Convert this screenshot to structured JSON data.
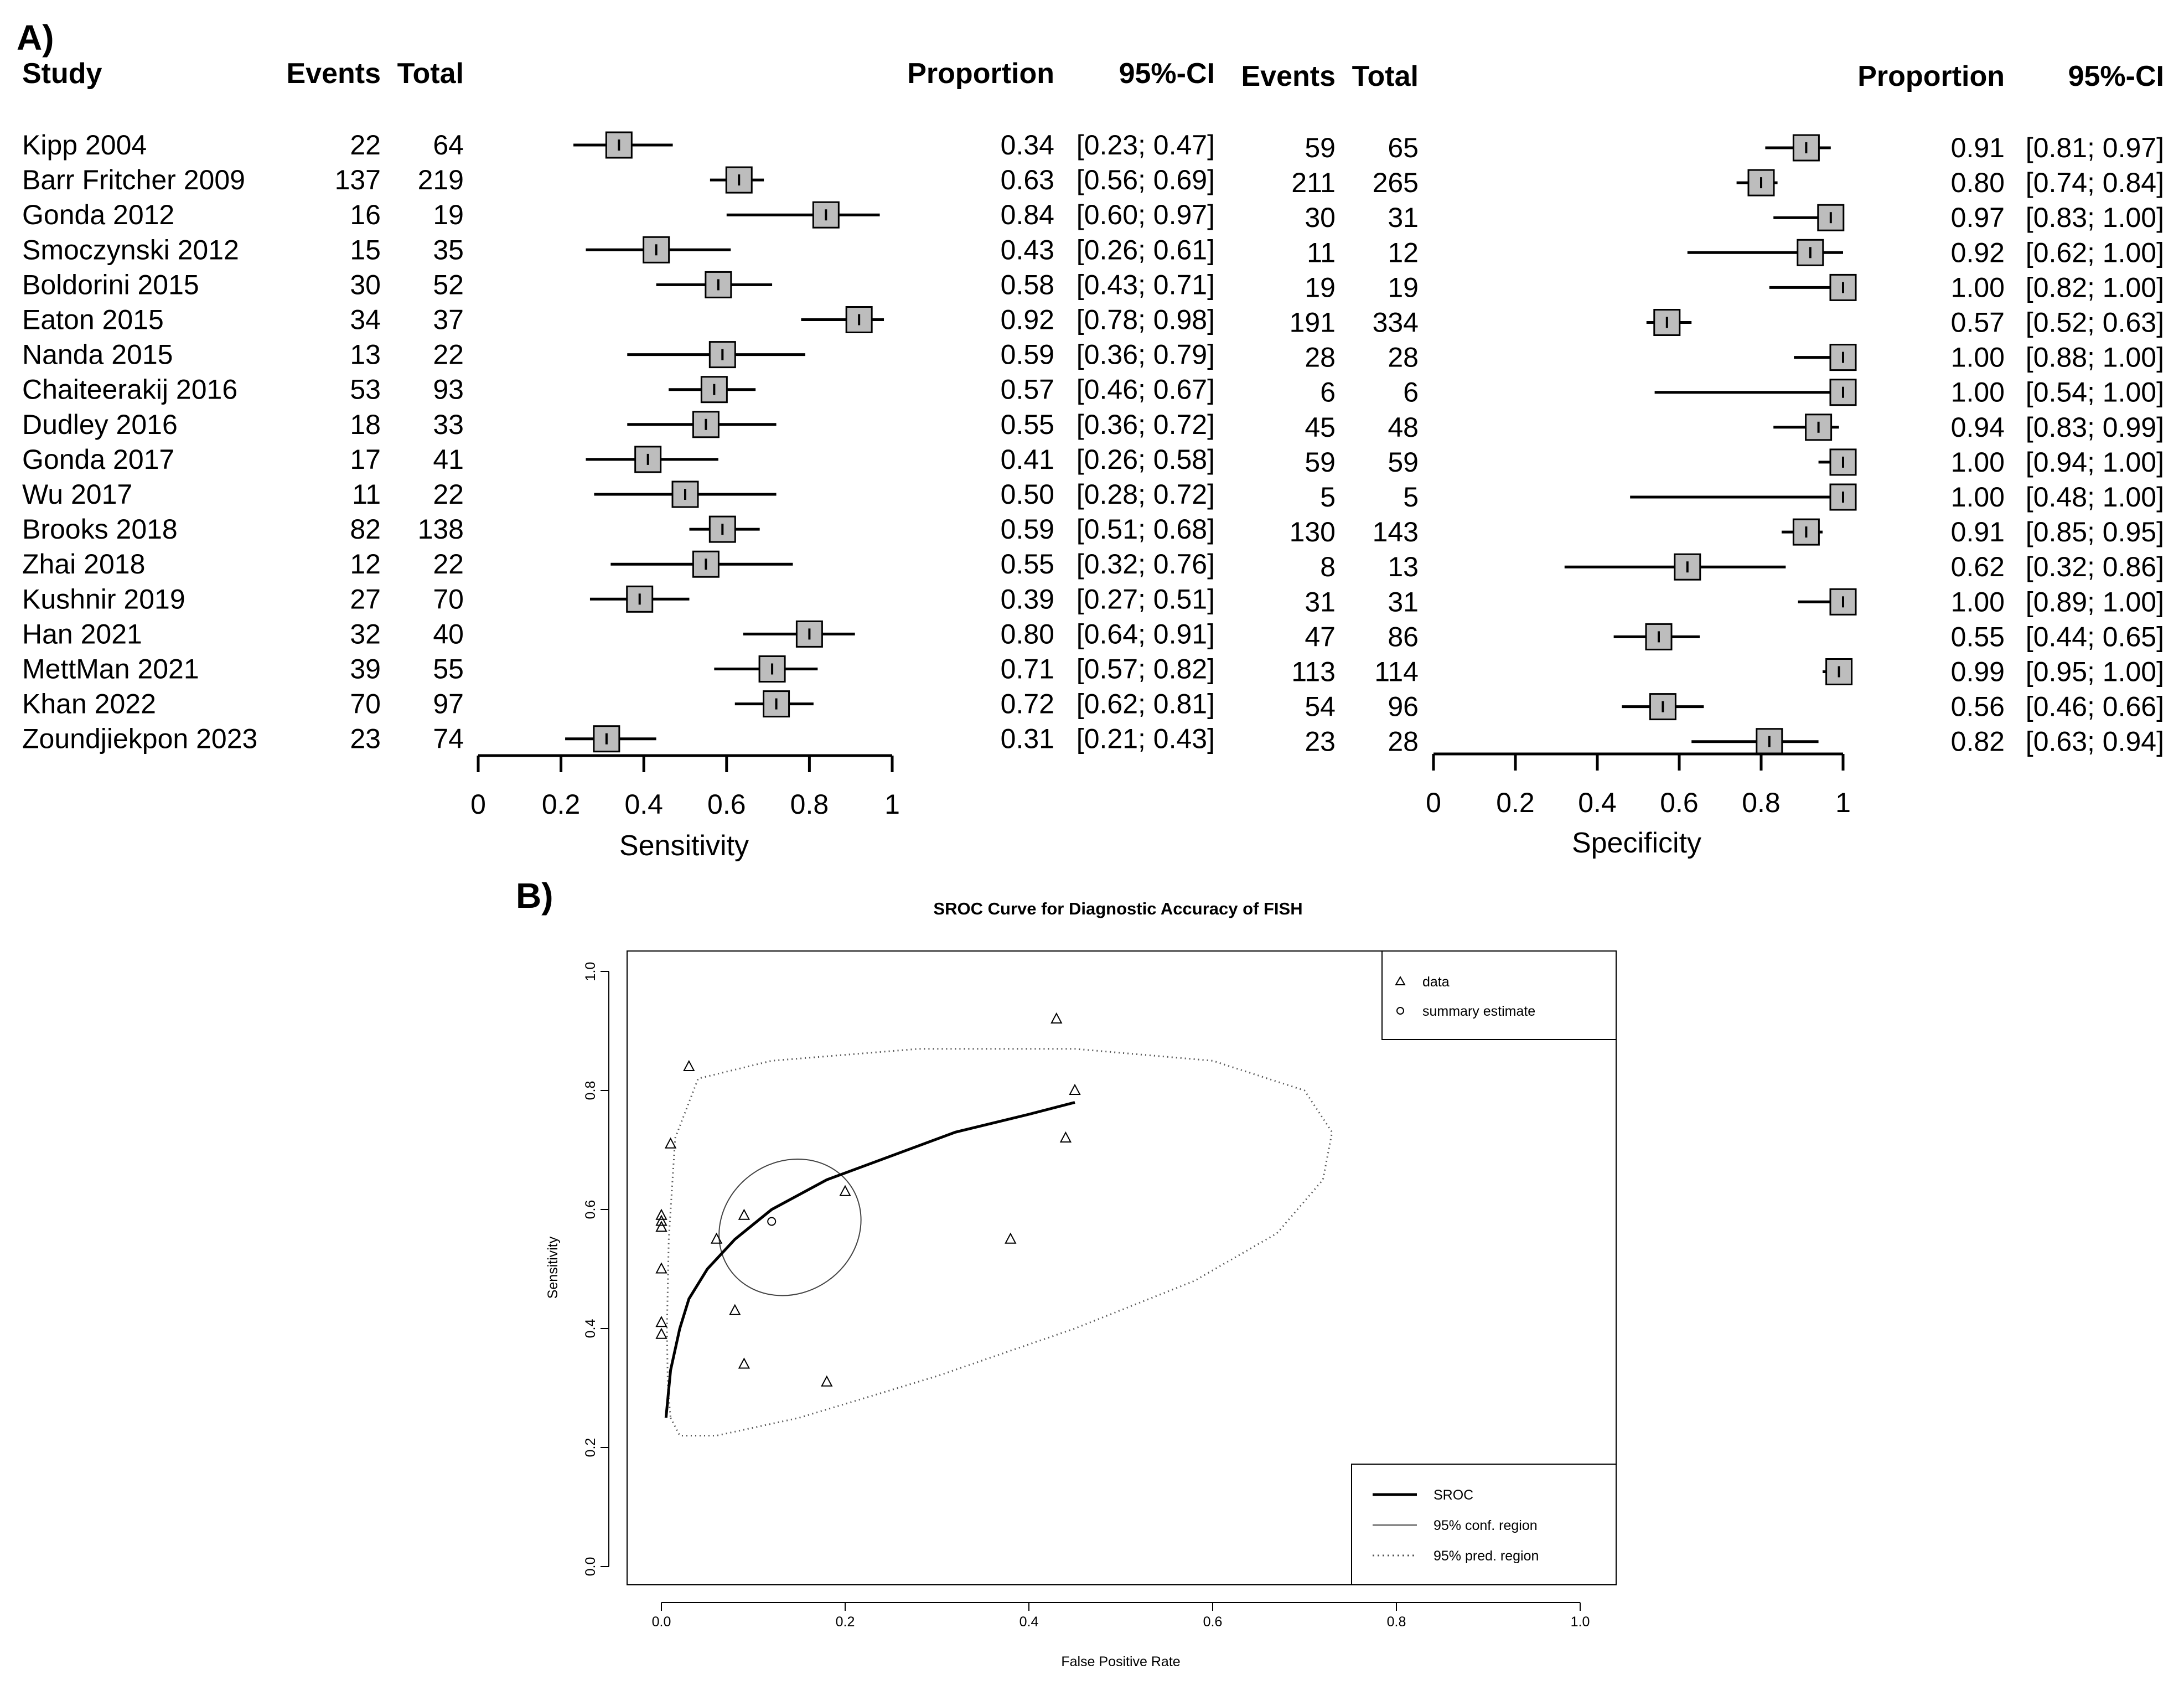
{
  "figure": {
    "panel_a_label": "A)",
    "panel_b_label": "B)"
  },
  "chart_data": [
    {
      "type": "forest",
      "subject": "sensitivity",
      "headers": {
        "study": "Study",
        "events": "Events",
        "total": "Total",
        "proportion": "Proportion",
        "ci": "95%-CI"
      },
      "xlabel": "Sensitivity",
      "xlim": [
        0,
        1
      ],
      "xticks": [
        0,
        0.2,
        0.4,
        0.6,
        0.8,
        1
      ],
      "xtick_labels": [
        "0",
        "0.2",
        "0.4",
        "0.6",
        "0.8",
        "1"
      ],
      "rows": [
        {
          "study": "Kipp 2004",
          "events": "22",
          "total": "64",
          "prop": 0.34,
          "lo": 0.23,
          "hi": 0.47,
          "prop_text": "0.34",
          "ci_text": "[0.23; 0.47]"
        },
        {
          "study": "Barr Fritcher 2009",
          "events": "137",
          "total": "219",
          "prop": 0.63,
          "lo": 0.56,
          "hi": 0.69,
          "prop_text": "0.63",
          "ci_text": "[0.56; 0.69]"
        },
        {
          "study": "Gonda 2012",
          "events": "16",
          "total": "19",
          "prop": 0.84,
          "lo": 0.6,
          "hi": 0.97,
          "prop_text": "0.84",
          "ci_text": "[0.60; 0.97]"
        },
        {
          "study": "Smoczynski 2012",
          "events": "15",
          "total": "35",
          "prop": 0.43,
          "lo": 0.26,
          "hi": 0.61,
          "prop_text": "0.43",
          "ci_text": "[0.26; 0.61]"
        },
        {
          "study": "Boldorini 2015",
          "events": "30",
          "total": "52",
          "prop": 0.58,
          "lo": 0.43,
          "hi": 0.71,
          "prop_text": "0.58",
          "ci_text": "[0.43; 0.71]"
        },
        {
          "study": "Eaton 2015",
          "events": "34",
          "total": "37",
          "prop": 0.92,
          "lo": 0.78,
          "hi": 0.98,
          "prop_text": "0.92",
          "ci_text": "[0.78; 0.98]"
        },
        {
          "study": "Nanda 2015",
          "events": "13",
          "total": "22",
          "prop": 0.59,
          "lo": 0.36,
          "hi": 0.79,
          "prop_text": "0.59",
          "ci_text": "[0.36; 0.79]"
        },
        {
          "study": "Chaiteerakij 2016",
          "events": "53",
          "total": "93",
          "prop": 0.57,
          "lo": 0.46,
          "hi": 0.67,
          "prop_text": "0.57",
          "ci_text": "[0.46; 0.67]"
        },
        {
          "study": "Dudley 2016",
          "events": "18",
          "total": "33",
          "prop": 0.55,
          "lo": 0.36,
          "hi": 0.72,
          "prop_text": "0.55",
          "ci_text": "[0.36; 0.72]"
        },
        {
          "study": "Gonda 2017",
          "events": "17",
          "total": "41",
          "prop": 0.41,
          "lo": 0.26,
          "hi": 0.58,
          "prop_text": "0.41",
          "ci_text": "[0.26; 0.58]"
        },
        {
          "study": "Wu 2017",
          "events": "11",
          "total": "22",
          "prop": 0.5,
          "lo": 0.28,
          "hi": 0.72,
          "prop_text": "0.50",
          "ci_text": "[0.28; 0.72]"
        },
        {
          "study": "Brooks 2018",
          "events": "82",
          "total": "138",
          "prop": 0.59,
          "lo": 0.51,
          "hi": 0.68,
          "prop_text": "0.59",
          "ci_text": "[0.51; 0.68]"
        },
        {
          "study": "Zhai 2018",
          "events": "12",
          "total": "22",
          "prop": 0.55,
          "lo": 0.32,
          "hi": 0.76,
          "prop_text": "0.55",
          "ci_text": "[0.32; 0.76]"
        },
        {
          "study": "Kushnir 2019",
          "events": "27",
          "total": "70",
          "prop": 0.39,
          "lo": 0.27,
          "hi": 0.51,
          "prop_text": "0.39",
          "ci_text": "[0.27; 0.51]"
        },
        {
          "study": "Han 2021",
          "events": "32",
          "total": "40",
          "prop": 0.8,
          "lo": 0.64,
          "hi": 0.91,
          "prop_text": "0.80",
          "ci_text": "[0.64; 0.91]"
        },
        {
          "study": "MettMan 2021",
          "events": "39",
          "total": "55",
          "prop": 0.71,
          "lo": 0.57,
          "hi": 0.82,
          "prop_text": "0.71",
          "ci_text": "[0.57; 0.82]"
        },
        {
          "study": "Khan 2022",
          "events": "70",
          "total": "97",
          "prop": 0.72,
          "lo": 0.62,
          "hi": 0.81,
          "prop_text": "0.72",
          "ci_text": "[0.62; 0.81]"
        },
        {
          "study": "Zoundjiekpon 2023",
          "events": "23",
          "total": "74",
          "prop": 0.31,
          "lo": 0.21,
          "hi": 0.43,
          "prop_text": "0.31",
          "ci_text": "[0.21; 0.43]"
        }
      ]
    },
    {
      "type": "forest",
      "subject": "specificity",
      "headers": {
        "events": "Events",
        "total": "Total",
        "proportion": "Proportion",
        "ci": "95%-CI"
      },
      "xlabel": "Specificity",
      "xlim": [
        0,
        1
      ],
      "xticks": [
        0,
        0.2,
        0.4,
        0.6,
        0.8,
        1
      ],
      "xtick_labels": [
        "0",
        "0.2",
        "0.4",
        "0.6",
        "0.8",
        "1"
      ],
      "rows": [
        {
          "events": "59",
          "total": "65",
          "prop": 0.91,
          "lo": 0.81,
          "hi": 0.97,
          "prop_text": "0.91",
          "ci_text": "[0.81; 0.97]"
        },
        {
          "events": "211",
          "total": "265",
          "prop": 0.8,
          "lo": 0.74,
          "hi": 0.84,
          "prop_text": "0.80",
          "ci_text": "[0.74; 0.84]"
        },
        {
          "events": "30",
          "total": "31",
          "prop": 0.97,
          "lo": 0.83,
          "hi": 1.0,
          "prop_text": "0.97",
          "ci_text": "[0.83; 1.00]"
        },
        {
          "events": "11",
          "total": "12",
          "prop": 0.92,
          "lo": 0.62,
          "hi": 1.0,
          "prop_text": "0.92",
          "ci_text": "[0.62; 1.00]"
        },
        {
          "events": "19",
          "total": "19",
          "prop": 1.0,
          "lo": 0.82,
          "hi": 1.0,
          "prop_text": "1.00",
          "ci_text": "[0.82; 1.00]"
        },
        {
          "events": "191",
          "total": "334",
          "prop": 0.57,
          "lo": 0.52,
          "hi": 0.63,
          "prop_text": "0.57",
          "ci_text": "[0.52; 0.63]"
        },
        {
          "events": "28",
          "total": "28",
          "prop": 1.0,
          "lo": 0.88,
          "hi": 1.0,
          "prop_text": "1.00",
          "ci_text": "[0.88; 1.00]"
        },
        {
          "events": "6",
          "total": "6",
          "prop": 1.0,
          "lo": 0.54,
          "hi": 1.0,
          "prop_text": "1.00",
          "ci_text": "[0.54; 1.00]"
        },
        {
          "events": "45",
          "total": "48",
          "prop": 0.94,
          "lo": 0.83,
          "hi": 0.99,
          "prop_text": "0.94",
          "ci_text": "[0.83; 0.99]"
        },
        {
          "events": "59",
          "total": "59",
          "prop": 1.0,
          "lo": 0.94,
          "hi": 1.0,
          "prop_text": "1.00",
          "ci_text": "[0.94; 1.00]"
        },
        {
          "events": "5",
          "total": "5",
          "prop": 1.0,
          "lo": 0.48,
          "hi": 1.0,
          "prop_text": "1.00",
          "ci_text": "[0.48; 1.00]"
        },
        {
          "events": "130",
          "total": "143",
          "prop": 0.91,
          "lo": 0.85,
          "hi": 0.95,
          "prop_text": "0.91",
          "ci_text": "[0.85; 0.95]"
        },
        {
          "events": "8",
          "total": "13",
          "prop": 0.62,
          "lo": 0.32,
          "hi": 0.86,
          "prop_text": "0.62",
          "ci_text": "[0.32; 0.86]"
        },
        {
          "events": "31",
          "total": "31",
          "prop": 1.0,
          "lo": 0.89,
          "hi": 1.0,
          "prop_text": "1.00",
          "ci_text": "[0.89; 1.00]"
        },
        {
          "events": "47",
          "total": "86",
          "prop": 0.55,
          "lo": 0.44,
          "hi": 0.65,
          "prop_text": "0.55",
          "ci_text": "[0.44; 0.65]"
        },
        {
          "events": "113",
          "total": "114",
          "prop": 0.99,
          "lo": 0.95,
          "hi": 1.0,
          "prop_text": "0.99",
          "ci_text": "[0.95; 1.00]"
        },
        {
          "events": "54",
          "total": "96",
          "prop": 0.56,
          "lo": 0.46,
          "hi": 0.66,
          "prop_text": "0.56",
          "ci_text": "[0.46; 0.66]"
        },
        {
          "events": "23",
          "total": "28",
          "prop": 0.82,
          "lo": 0.63,
          "hi": 0.94,
          "prop_text": "0.82",
          "ci_text": "[0.63; 0.94]"
        }
      ]
    },
    {
      "type": "scatter",
      "title": "SROC Curve for Diagnostic Accuracy of FISH",
      "xlabel": "False Positive Rate",
      "ylabel": "Sensitivity",
      "xlim": [
        0,
        1
      ],
      "ylim": [
        0,
        1
      ],
      "xticks": [
        0,
        0.2,
        0.4,
        0.6,
        0.8,
        1
      ],
      "xtick_labels": [
        "0.0",
        "0.2",
        "0.4",
        "0.6",
        "0.8",
        "1.0"
      ],
      "yticks": [
        0,
        0.2,
        0.4,
        0.6,
        0.8,
        1
      ],
      "ytick_labels": [
        "0.0",
        "0.2",
        "0.4",
        "0.6",
        "0.8",
        "1.0"
      ],
      "points": [
        {
          "fpr": 0.09,
          "sens": 0.34
        },
        {
          "fpr": 0.2,
          "sens": 0.63
        },
        {
          "fpr": 0.03,
          "sens": 0.84
        },
        {
          "fpr": 0.08,
          "sens": 0.43
        },
        {
          "fpr": 0.0,
          "sens": 0.58
        },
        {
          "fpr": 0.43,
          "sens": 0.92
        },
        {
          "fpr": 0.0,
          "sens": 0.59
        },
        {
          "fpr": 0.0,
          "sens": 0.57
        },
        {
          "fpr": 0.06,
          "sens": 0.55
        },
        {
          "fpr": 0.0,
          "sens": 0.41
        },
        {
          "fpr": 0.0,
          "sens": 0.5
        },
        {
          "fpr": 0.09,
          "sens": 0.59
        },
        {
          "fpr": 0.38,
          "sens": 0.55
        },
        {
          "fpr": 0.0,
          "sens": 0.39
        },
        {
          "fpr": 0.45,
          "sens": 0.8
        },
        {
          "fpr": 0.01,
          "sens": 0.71
        },
        {
          "fpr": 0.44,
          "sens": 0.72
        },
        {
          "fpr": 0.18,
          "sens": 0.31
        }
      ],
      "summary_estimate": {
        "fpr": 0.12,
        "sens": 0.58
      },
      "sroc_curve": [
        [
          0.005,
          0.25
        ],
        [
          0.01,
          0.33
        ],
        [
          0.02,
          0.4
        ],
        [
          0.03,
          0.45
        ],
        [
          0.05,
          0.5
        ],
        [
          0.08,
          0.55
        ],
        [
          0.12,
          0.6
        ],
        [
          0.18,
          0.65
        ],
        [
          0.25,
          0.69
        ],
        [
          0.32,
          0.73
        ],
        [
          0.4,
          0.76
        ],
        [
          0.45,
          0.78
        ]
      ],
      "conf_region": {
        "center": [
          0.14,
          0.57
        ],
        "rx": 0.08,
        "ry": 0.11,
        "angle_deg": -35
      },
      "pred_region": [
        [
          0.01,
          0.25
        ],
        [
          0.02,
          0.22
        ],
        [
          0.06,
          0.22
        ],
        [
          0.15,
          0.25
        ],
        [
          0.3,
          0.32
        ],
        [
          0.45,
          0.4
        ],
        [
          0.58,
          0.48
        ],
        [
          0.67,
          0.56
        ],
        [
          0.72,
          0.65
        ],
        [
          0.73,
          0.73
        ],
        [
          0.7,
          0.8
        ],
        [
          0.6,
          0.85
        ],
        [
          0.45,
          0.87
        ],
        [
          0.28,
          0.87
        ],
        [
          0.12,
          0.85
        ],
        [
          0.04,
          0.82
        ],
        [
          0.015,
          0.72
        ],
        [
          0.008,
          0.55
        ],
        [
          0.006,
          0.4
        ],
        [
          0.007,
          0.3
        ],
        [
          0.01,
          0.25
        ]
      ],
      "legend_top": {
        "position": "top-right",
        "entries": [
          {
            "label": "data",
            "marker": "triangle"
          },
          {
            "label": "summary estimate",
            "marker": "circle"
          }
        ]
      },
      "legend_bottom": {
        "position": "bottom-right",
        "entries": [
          {
            "label": "SROC",
            "style": "solid-thick"
          },
          {
            "label": "95% conf. region",
            "style": "solid-thin"
          },
          {
            "label": "95% pred. region",
            "style": "dotted"
          }
        ]
      }
    }
  ]
}
